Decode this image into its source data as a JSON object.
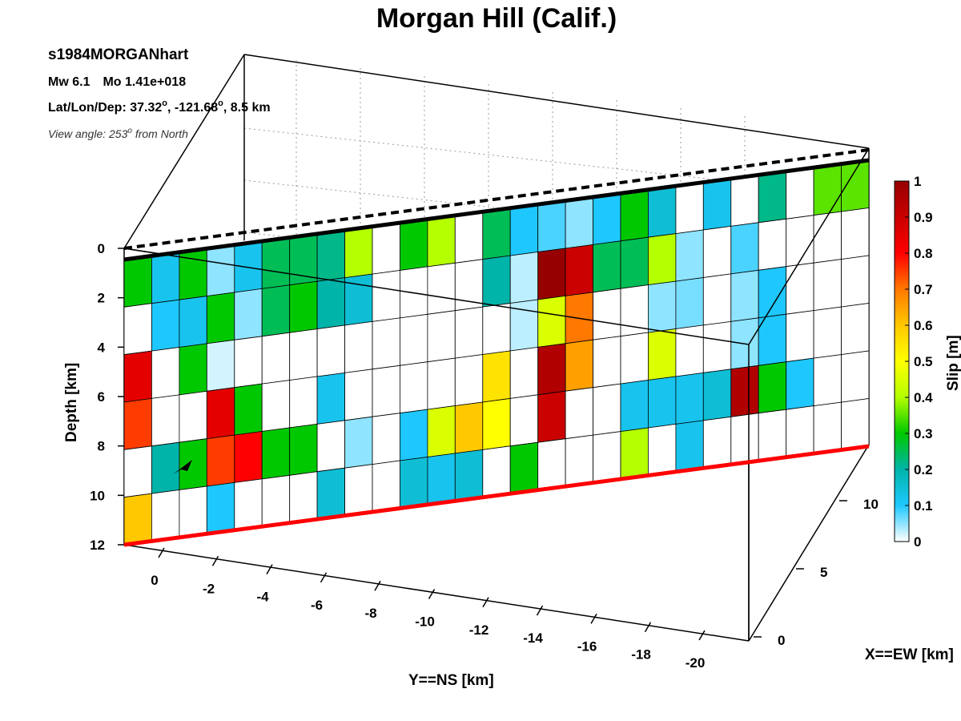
{
  "title": "Morgan Hill (Calif.)",
  "info": {
    "event_id": "s1984MORGANhart",
    "magnitude": "Mw 6.1",
    "moment": "Mo 1.41e+018",
    "location_prefix": "Lat/Lon/Dep: 37.32",
    "location_lon": ", -121.68",
    "location_dep": ", 8.5 km",
    "degree_mark": "o",
    "view_prefix": "View angle: 253",
    "view_suffix": " from North"
  },
  "chart_data": {
    "type": "heatmap",
    "title": "Morgan Hill (Calif.)",
    "fault_plane": {
      "rows": 6,
      "cols": 27,
      "depth_range_km": [
        0,
        12
      ],
      "row_depths_km": [
        1,
        3,
        5,
        7,
        9,
        11
      ],
      "hypocenter": {
        "row": 4,
        "col": 2
      }
    },
    "slip_m": [
      [
        0.3,
        0.12,
        0.3,
        0.05,
        0.12,
        0.25,
        0.25,
        0.22,
        0.4,
        0,
        0.3,
        0.4,
        0,
        0.25,
        0.1,
        0.08,
        0.05,
        0.1,
        0.3,
        0.15,
        0,
        0.12,
        0,
        0.22,
        0,
        0.35,
        0.35
      ],
      [
        0,
        0.1,
        0.12,
        0.3,
        0.05,
        0.25,
        0.3,
        0.2,
        0.15,
        0,
        0,
        0,
        0,
        0.2,
        0.03,
        1.0,
        0.9,
        0.25,
        0.25,
        0.4,
        0.05,
        0,
        0.08,
        0,
        0,
        0,
        0
      ],
      [
        0.85,
        0,
        0.3,
        0.02,
        0,
        0,
        0,
        0,
        0,
        0,
        0,
        0,
        0,
        0,
        0.03,
        0.45,
        0.7,
        0,
        0,
        0.05,
        0.06,
        0,
        0.05,
        0.1,
        0,
        0,
        0
      ],
      [
        0.75,
        0,
        0,
        0.85,
        0.3,
        0,
        0,
        0.12,
        0,
        0,
        0,
        0,
        0,
        0.55,
        0,
        0.95,
        0.65,
        0,
        0,
        0.45,
        0,
        0,
        0.05,
        0.1,
        0,
        0,
        0
      ],
      [
        0,
        0.2,
        0.3,
        0.75,
        0.8,
        0.3,
        0.3,
        0,
        0.05,
        0,
        0.1,
        0.45,
        0.6,
        0.5,
        0,
        0.9,
        0,
        0,
        0.12,
        0.12,
        0.12,
        0.15,
        0.95,
        0.3,
        0.1,
        0,
        0
      ],
      [
        0.6,
        0,
        0,
        0.1,
        0,
        0,
        0,
        0.15,
        0,
        0,
        0.15,
        0.12,
        0.15,
        0,
        0.3,
        0,
        0,
        0,
        0.4,
        0,
        0.12,
        0,
        0,
        0,
        0,
        0,
        0
      ]
    ],
    "colorbar": {
      "label": "Slip [m]",
      "range": [
        0,
        1
      ],
      "ticks": [
        "0",
        "0.1",
        "0.2",
        "0.3",
        "0.4",
        "0.5",
        "0.6",
        "0.7",
        "0.8",
        "0.9",
        "1"
      ],
      "colormap": [
        "#ffffff",
        "#1ec8ff",
        "#00b4aa",
        "#00c800",
        "#b4ff00",
        "#ffff00",
        "#ffc800",
        "#ff7800",
        "#ff0000",
        "#960000"
      ]
    },
    "axes": {
      "z": {
        "label": "Depth [km]",
        "ticks": [
          "0",
          "2",
          "4",
          "6",
          "8",
          "10",
          "12"
        ]
      },
      "y": {
        "label": "Y==NS [km]",
        "ticks": [
          "0",
          "-2",
          "-4",
          "-6",
          "-8",
          "-10",
          "-12",
          "-14",
          "-16",
          "-18",
          "-20"
        ]
      },
      "x": {
        "label": "X==EW [km]",
        "ticks": [
          "0",
          "5",
          "10"
        ]
      }
    },
    "grid": true
  }
}
